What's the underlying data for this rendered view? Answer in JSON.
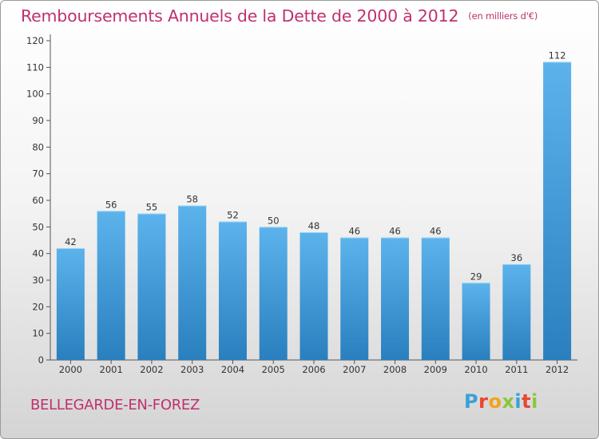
{
  "title": "Remboursements Annuels de la Dette de 2000 à 2012",
  "subtitle": "(en milliers d'€)",
  "commune": "BELLEGARDE-EN-FOREZ",
  "logo_text": "Proxiti",
  "colors": {
    "accent": "#c0306e",
    "bar_top": "#5cb3ec",
    "bar_bottom": "#2a7fbe"
  },
  "chart_data": {
    "type": "bar",
    "categories": [
      "2000",
      "2001",
      "2002",
      "2003",
      "2004",
      "2005",
      "2006",
      "2007",
      "2008",
      "2009",
      "2010",
      "2011",
      "2012"
    ],
    "values": [
      42,
      56,
      55,
      58,
      52,
      50,
      48,
      46,
      46,
      46,
      29,
      36,
      112
    ],
    "ylim": [
      0,
      120
    ],
    "yticks": [
      0,
      10,
      20,
      30,
      40,
      50,
      60,
      70,
      80,
      90,
      100,
      110,
      120
    ],
    "grid": false,
    "data_labels": true
  }
}
